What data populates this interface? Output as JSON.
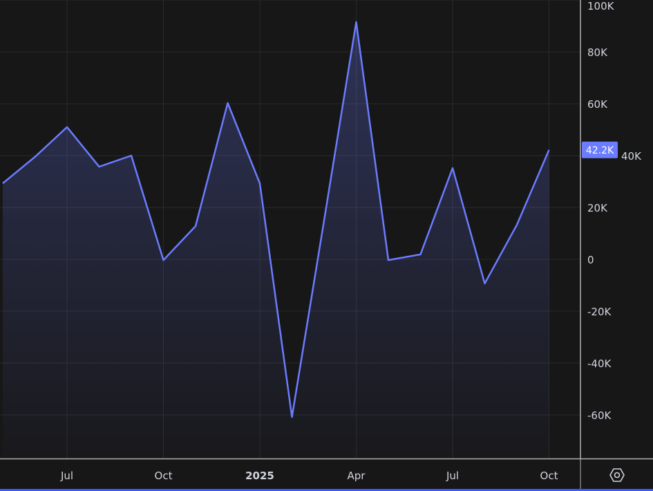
{
  "chart_data": {
    "type": "area",
    "x": [
      "2024-05",
      "2024-06",
      "2024-07",
      "2024-08",
      "2024-09",
      "2024-10",
      "2024-11",
      "2024-12",
      "2025-01",
      "2025-02",
      "2025-03",
      "2025-04",
      "2025-05",
      "2025-06",
      "2025-07",
      "2025-08",
      "2025-09",
      "2025-10"
    ],
    "values": [
      29300,
      39500,
      51000,
      35700,
      40000,
      -300,
      12800,
      60300,
      29300,
      -60800,
      15000,
      91500,
      -300,
      1900,
      35200,
      -9300,
      13300,
      42200
    ],
    "ylim": [
      -73000,
      100000
    ],
    "y_ticks": [
      {
        "value": 100000,
        "label": "100K"
      },
      {
        "value": 80000,
        "label": "80K"
      },
      {
        "value": 60000,
        "label": "60K"
      },
      {
        "value": 40000,
        "label": "40K"
      },
      {
        "value": 20000,
        "label": "20K"
      },
      {
        "value": 0,
        "label": "0"
      },
      {
        "value": -20000,
        "label": "-20K"
      },
      {
        "value": -40000,
        "label": "-40K"
      },
      {
        "value": -60000,
        "label": "-60K"
      }
    ],
    "x_ticks": [
      {
        "value": "2024-07",
        "label": "Jul"
      },
      {
        "value": "2024-10",
        "label": "Oct"
      },
      {
        "value": "2025-01",
        "label": "2025"
      },
      {
        "value": "2025-04",
        "label": "Apr"
      },
      {
        "value": "2025-07",
        "label": "Jul"
      },
      {
        "value": "2025-10",
        "label": "Oct"
      }
    ],
    "last_value_label": "42.2K",
    "grid": true,
    "colors": {
      "line": "#6b7cff",
      "background": "#171717",
      "grid": "#2a2a2a",
      "label_bg": "#6b7cff"
    }
  },
  "settings_icon": "settings-hexagon-icon"
}
